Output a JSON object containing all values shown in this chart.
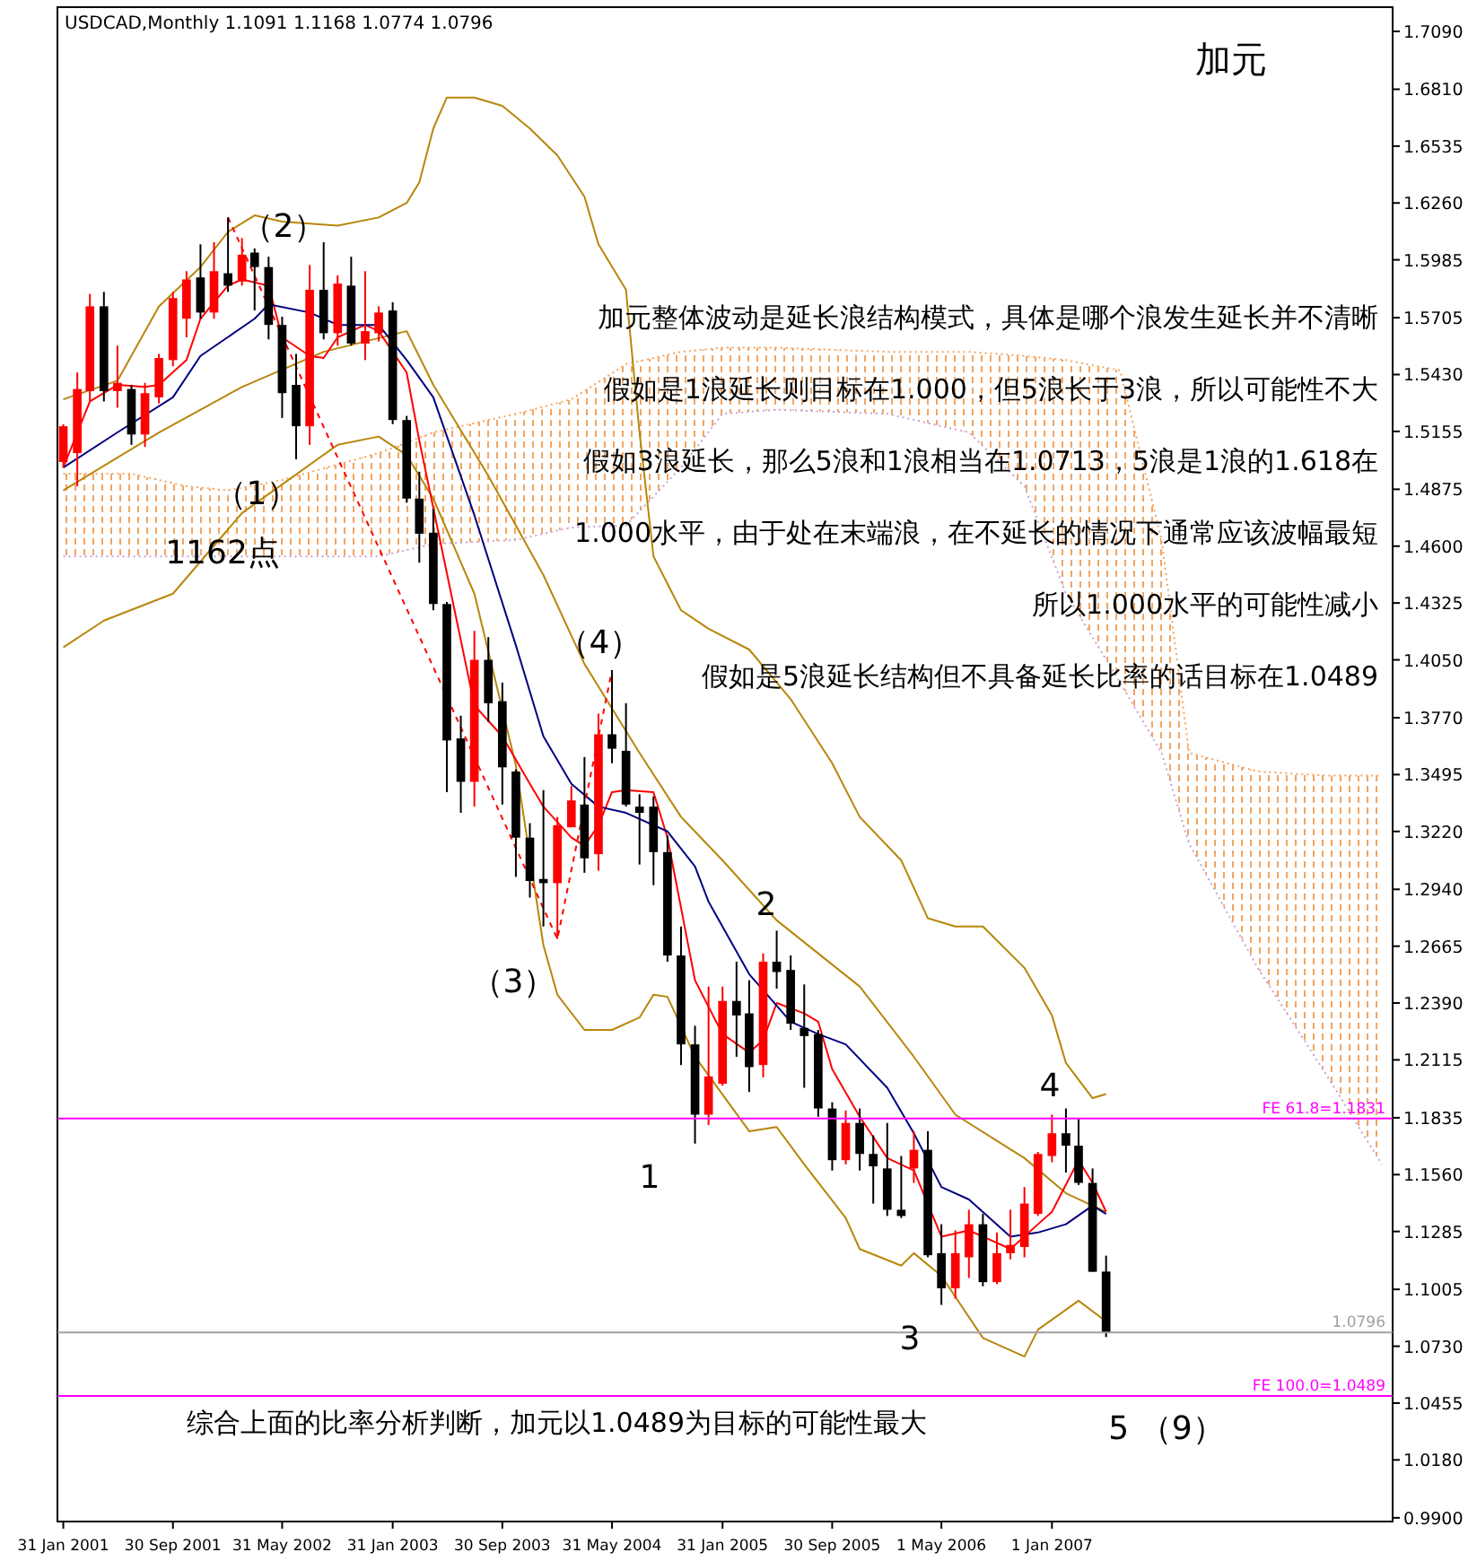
{
  "chart_data": {
    "type": "candlestick",
    "title": "加元",
    "subtitle": "USDCAD,Monthly  1.1091 1.1168 1.0774 1.0796",
    "x": [
      "2001-01",
      "2001-02",
      "2001-03",
      "2001-04",
      "2001-05",
      "2001-06",
      "2001-07",
      "2001-08",
      "2001-09",
      "2001-10",
      "2001-11",
      "2001-12",
      "2002-01",
      "2002-02",
      "2002-03",
      "2002-04",
      "2002-05",
      "2002-06",
      "2002-07",
      "2002-08",
      "2002-09",
      "2002-10",
      "2002-11",
      "2002-12",
      "2003-01",
      "2003-02",
      "2003-03",
      "2003-04",
      "2003-05",
      "2003-06",
      "2003-07",
      "2003-08",
      "2003-09",
      "2003-10",
      "2003-11",
      "2003-12",
      "2004-01",
      "2004-02",
      "2004-03",
      "2004-04",
      "2004-05",
      "2004-06",
      "2004-07",
      "2004-08",
      "2004-09",
      "2004-10",
      "2004-11",
      "2004-12",
      "2005-01",
      "2005-02",
      "2005-03",
      "2005-04",
      "2005-05",
      "2005-06",
      "2005-07",
      "2005-08",
      "2005-09",
      "2005-10",
      "2005-11",
      "2005-12",
      "2006-01",
      "2006-02",
      "2006-03",
      "2006-04",
      "2006-05",
      "2006-06",
      "2006-07",
      "2006-08",
      "2006-09",
      "2006-10",
      "2006-11",
      "2006-12",
      "2007-01",
      "2007-02",
      "2007-03",
      "2007-04",
      "2007-05"
    ],
    "ohlc": [
      [
        1.5007,
        1.519,
        1.498,
        1.518
      ],
      [
        1.505,
        1.544,
        1.489,
        1.536
      ],
      [
        1.535,
        1.582,
        1.53,
        1.576
      ],
      [
        1.576,
        1.583,
        1.53,
        1.535
      ],
      [
        1.535,
        1.557,
        1.527,
        1.539
      ],
      [
        1.536,
        1.538,
        1.509,
        1.514
      ],
      [
        1.514,
        1.539,
        1.508,
        1.534
      ],
      [
        1.532,
        1.553,
        1.529,
        1.551
      ],
      [
        1.55,
        1.583,
        1.547,
        1.58
      ],
      [
        1.57,
        1.593,
        1.561,
        1.589
      ],
      [
        1.59,
        1.606,
        1.57,
        1.573
      ],
      [
        1.573,
        1.607,
        1.57,
        1.593
      ],
      [
        1.592,
        1.619,
        1.583,
        1.586
      ],
      [
        1.588,
        1.609,
        1.586,
        1.601
      ],
      [
        1.602,
        1.604,
        1.574,
        1.595
      ],
      [
        1.595,
        1.6,
        1.56,
        1.567
      ],
      [
        1.567,
        1.571,
        1.522,
        1.534
      ],
      [
        1.538,
        1.553,
        1.502,
        1.518
      ],
      [
        1.518,
        1.596,
        1.509,
        1.584
      ],
      [
        1.584,
        1.607,
        1.56,
        1.563
      ],
      [
        1.563,
        1.591,
        1.557,
        1.587
      ],
      [
        1.586,
        1.6,
        1.557,
        1.558
      ],
      [
        1.558,
        1.593,
        1.55,
        1.564
      ],
      [
        1.563,
        1.576,
        1.559,
        1.573
      ],
      [
        1.574,
        1.578,
        1.519,
        1.521
      ],
      [
        1.521,
        1.523,
        1.481,
        1.483
      ],
      [
        1.483,
        1.496,
        1.452,
        1.466
      ],
      [
        1.4665,
        1.478,
        1.429,
        1.432
      ],
      [
        1.432,
        1.433,
        1.341,
        1.366
      ],
      [
        1.367,
        1.378,
        1.331,
        1.346
      ],
      [
        1.346,
        1.419,
        1.334,
        1.405
      ],
      [
        1.405,
        1.416,
        1.375,
        1.384
      ],
      [
        1.385,
        1.394,
        1.335,
        1.353
      ],
      [
        1.351,
        1.352,
        1.3,
        1.319
      ],
      [
        1.319,
        1.326,
        1.29,
        1.298
      ],
      [
        1.299,
        1.342,
        1.276,
        1.297
      ],
      [
        1.297,
        1.329,
        1.27,
        1.325
      ],
      [
        1.324,
        1.344,
        1.324,
        1.337
      ],
      [
        1.335,
        1.358,
        1.302,
        1.309
      ],
      [
        1.311,
        1.379,
        1.303,
        1.369
      ],
      [
        1.369,
        1.4,
        1.355,
        1.362
      ],
      [
        1.361,
        1.384,
        1.334,
        1.335
      ],
      [
        1.334,
        1.34,
        1.306,
        1.331
      ],
      [
        1.334,
        1.339,
        1.296,
        1.312
      ],
      [
        1.312,
        1.32,
        1.259,
        1.262
      ],
      [
        1.262,
        1.276,
        1.209,
        1.219
      ],
      [
        1.219,
        1.228,
        1.171,
        1.185
      ],
      [
        1.185,
        1.247,
        1.18,
        1.2035
      ],
      [
        1.2,
        1.247,
        1.199,
        1.24
      ],
      [
        1.24,
        1.259,
        1.213,
        1.233
      ],
      [
        1.234,
        1.25,
        1.196,
        1.208
      ],
      [
        1.209,
        1.263,
        1.203,
        1.259
      ],
      [
        1.259,
        1.274,
        1.246,
        1.254
      ],
      [
        1.255,
        1.262,
        1.226,
        1.229
      ],
      [
        1.227,
        1.248,
        1.198,
        1.223
      ],
      [
        1.224,
        1.226,
        1.184,
        1.188
      ],
      [
        1.188,
        1.191,
        1.158,
        1.163
      ],
      [
        1.163,
        1.187,
        1.161,
        1.181
      ],
      [
        1.181,
        1.188,
        1.158,
        1.166
      ],
      [
        1.166,
        1.175,
        1.142,
        1.16
      ],
      [
        1.159,
        1.181,
        1.136,
        1.139
      ],
      [
        1.139,
        1.165,
        1.135,
        1.136
      ],
      [
        1.159,
        1.177,
        1.152,
        1.168
      ],
      [
        1.168,
        1.177,
        1.116,
        1.117
      ],
      [
        1.118,
        1.132,
        1.093,
        1.101
      ],
      [
        1.101,
        1.129,
        1.096,
        1.118
      ],
      [
        1.116,
        1.139,
        1.106,
        1.132
      ],
      [
        1.132,
        1.137,
        1.102,
        1.104
      ],
      [
        1.104,
        1.128,
        1.103,
        1.118
      ],
      [
        1.118,
        1.139,
        1.115,
        1.122
      ],
      [
        1.121,
        1.15,
        1.116,
        1.142
      ],
      [
        1.137,
        1.167,
        1.136,
        1.166
      ],
      [
        1.165,
        1.185,
        1.162,
        1.176
      ],
      [
        1.176,
        1.188,
        1.157,
        1.17
      ],
      [
        1.17,
        1.183,
        1.151,
        1.152
      ],
      [
        1.152,
        1.159,
        1.109,
        1.109
      ],
      [
        1.1091,
        1.1168,
        1.0774,
        1.0796
      ]
    ],
    "colors": [
      "#ff0000",
      "#ff0000",
      "#ff0000",
      "#000000",
      "#ff0000",
      "#000000",
      "#ff0000",
      "#ff0000",
      "#ff0000",
      "#ff0000",
      "#000000",
      "#ff0000",
      "#000000",
      "#ff0000",
      "#000000",
      "#000000",
      "#000000",
      "#000000",
      "#ff0000",
      "#000000",
      "#ff0000",
      "#000000",
      "#ff0000",
      "#ff0000",
      "#000000",
      "#000000",
      "#000000",
      "#000000",
      "#000000",
      "#000000",
      "#ff0000",
      "#000000",
      "#000000",
      "#000000",
      "#000000",
      "#000000",
      "#ff0000",
      "#ff0000",
      "#000000",
      "#ff0000",
      "#000000",
      "#000000",
      "#000000",
      "#000000",
      "#000000",
      "#000000",
      "#000000",
      "#ff0000",
      "#ff0000",
      "#000000",
      "#000000",
      "#ff0000",
      "#000000",
      "#000000",
      "#000000",
      "#000000",
      "#000000",
      "#ff0000",
      "#000000",
      "#000000",
      "#000000",
      "#000000",
      "#ff0000",
      "#000000",
      "#000000",
      "#ff0000",
      "#ff0000",
      "#000000",
      "#ff0000",
      "#ff0000",
      "#ff0000",
      "#ff0000",
      "#ff0000",
      "#000000",
      "#000000",
      "#000000",
      "#000000"
    ],
    "series": [
      {
        "type": "line",
        "line_style": "dotted",
        "color": "#f4a460",
        "x": [
          "2001-01",
          "2001-06",
          "2001-10",
          "2002-01",
          "2002-05",
          "2002-12",
          "2003-04",
          "2003-10",
          "2004-02",
          "2004-06",
          "2004-10",
          "2005-01",
          "2005-05",
          "2006-01",
          "2006-07",
          "2006-11",
          "2007-02",
          "2007-06",
          "2007-09",
          "2007-11",
          "2008-04",
          "2008-09",
          "2009-01"
        ],
        "values": [
          1.495,
          1.495,
          1.489,
          1.487,
          1.492,
          1.505,
          1.515,
          1.524,
          1.531,
          1.548,
          1.554,
          1.556,
          1.556,
          1.554,
          1.554,
          1.552,
          1.55,
          1.545,
          1.463,
          1.36,
          1.351,
          1.349,
          1.349
        ]
      },
      {
        "type": "line",
        "line_style": "dotted",
        "color": "#c8a0d8",
        "x": [
          "2001-01",
          "2001-06",
          "2001-10",
          "2002-01",
          "2002-05",
          "2002-12",
          "2003-04",
          "2003-10",
          "2004-02",
          "2004-06",
          "2004-10",
          "2005-01",
          "2005-05",
          "2006-01",
          "2006-07",
          "2006-11",
          "2007-02",
          "2007-06",
          "2007-09",
          "2007-11",
          "2008-04",
          "2008-09",
          "2009-01"
        ],
        "values": [
          1.455,
          1.455,
          1.455,
          1.455,
          1.455,
          1.455,
          1.461,
          1.463,
          1.469,
          1.47,
          1.498,
          1.524,
          1.526,
          1.524,
          1.515,
          1.489,
          1.437,
          1.394,
          1.36,
          1.316,
          1.256,
          1.204,
          1.161
        ]
      },
      {
        "type": "line",
        "color": "#b8860b",
        "x": [
          "2001-01",
          "2001-05",
          "2001-08",
          "2001-11",
          "2002-01",
          "2002-03",
          "2002-05",
          "2002-09",
          "2002-12",
          "2003-02",
          "2003-03",
          "2003-04",
          "2003-05",
          "2003-07",
          "2003-09",
          "2003-11",
          "2004-01",
          "2004-03",
          "2004-04",
          "2004-06",
          "2004-07",
          "2004-08",
          "2004-10",
          "2004-12",
          "2005-03",
          "2005-06",
          "2005-09",
          "2005-11",
          "2006-02",
          "2006-04",
          "2006-06",
          "2006-08",
          "2006-11",
          "2007-01",
          "2007-02",
          "2007-04",
          "2007-05"
        ],
        "values": [
          1.531,
          1.54,
          1.576,
          1.595,
          1.612,
          1.62,
          1.617,
          1.615,
          1.619,
          1.626,
          1.636,
          1.662,
          1.677,
          1.677,
          1.673,
          1.662,
          1.649,
          1.629,
          1.606,
          1.584,
          1.515,
          1.455,
          1.429,
          1.42,
          1.41,
          1.386,
          1.355,
          1.329,
          1.308,
          1.28,
          1.276,
          1.276,
          1.256,
          1.233,
          1.21,
          1.193,
          1.195
        ]
      },
      {
        "type": "line",
        "color": "#b8860b",
        "x": [
          "2001-01",
          "2001-08",
          "2002-02",
          "2002-08",
          "2003-02",
          "2003-04",
          "2003-08",
          "2003-12",
          "2004-03",
          "2004-07",
          "2004-10",
          "2005-01",
          "2005-05",
          "2005-11",
          "2006-03",
          "2006-06",
          "2006-11",
          "2007-02",
          "2007-05"
        ],
        "values": [
          1.487,
          1.515,
          1.537,
          1.554,
          1.564,
          1.538,
          1.494,
          1.446,
          1.403,
          1.36,
          1.329,
          1.308,
          1.279,
          1.247,
          1.213,
          1.185,
          1.164,
          1.147,
          1.138
        ]
      },
      {
        "type": "line",
        "color": "#b8860b",
        "x": [
          "2001-01",
          "2001-04",
          "2001-09",
          "2002-02",
          "2002-09",
          "2002-12",
          "2003-02",
          "2003-04",
          "2003-07",
          "2003-10",
          "2003-12",
          "2004-01",
          "2004-03",
          "2004-05",
          "2004-07",
          "2004-08",
          "2004-09",
          "2004-11",
          "2005-03",
          "2005-05",
          "2005-07",
          "2005-10",
          "2005-11",
          "2006-02",
          "2006-03",
          "2006-05",
          "2006-08",
          "2006-11",
          "2006-12",
          "2007-03",
          "2007-05"
        ],
        "values": [
          1.411,
          1.424,
          1.437,
          1.476,
          1.509,
          1.513,
          1.504,
          1.483,
          1.437,
          1.354,
          1.267,
          1.243,
          1.226,
          1.226,
          1.232,
          1.243,
          1.242,
          1.213,
          1.177,
          1.179,
          1.161,
          1.135,
          1.12,
          1.112,
          1.118,
          1.107,
          1.077,
          1.068,
          1.081,
          1.095,
          1.085
        ]
      },
      {
        "type": "line",
        "color": "#ff0000",
        "x": [
          "2001-01",
          "2001-03",
          "2001-05",
          "2001-07",
          "2001-08",
          "2001-10",
          "2001-11",
          "2002-01",
          "2002-02",
          "2002-04",
          "2002-05",
          "2002-07",
          "2002-08",
          "2002-09",
          "2002-11",
          "2002-12",
          "2003-02",
          "2003-03",
          "2003-07",
          "2003-09",
          "2003-11",
          "2003-12",
          "2004-02",
          "2004-03",
          "2004-04",
          "2004-05",
          "2004-06",
          "2004-08",
          "2004-09",
          "2004-10",
          "2004-11",
          "2005-01",
          "2005-03",
          "2005-04",
          "2005-05",
          "2005-07",
          "2005-08",
          "2005-09",
          "2005-11",
          "2006-01",
          "2006-03",
          "2006-05",
          "2006-07",
          "2006-08",
          "2006-10",
          "2006-12",
          "2007-01",
          "2007-03",
          "2007-04",
          "2007-05"
        ],
        "values": [
          1.498,
          1.53,
          1.538,
          1.537,
          1.538,
          1.55,
          1.57,
          1.586,
          1.589,
          1.586,
          1.561,
          1.552,
          1.551,
          1.561,
          1.567,
          1.564,
          1.544,
          1.511,
          1.383,
          1.368,
          1.345,
          1.334,
          1.319,
          1.315,
          1.325,
          1.341,
          1.342,
          1.341,
          1.319,
          1.285,
          1.25,
          1.224,
          1.215,
          1.221,
          1.239,
          1.234,
          1.23,
          1.207,
          1.184,
          1.164,
          1.158,
          1.126,
          1.129,
          1.126,
          1.12,
          1.132,
          1.138,
          1.163,
          1.152,
          1.138
        ]
      },
      {
        "type": "line",
        "color": "#000080",
        "x": [
          "2001-01",
          "2001-05",
          "2001-09",
          "2001-11",
          "2002-03",
          "2002-04",
          "2002-07",
          "2002-09",
          "2002-12",
          "2003-02",
          "2003-04",
          "2003-07",
          "2003-10",
          "2003-12",
          "2004-02",
          "2004-04",
          "2004-06",
          "2004-09",
          "2004-11",
          "2004-12",
          "2005-03",
          "2005-06",
          "2005-08",
          "2005-10",
          "2006-01",
          "2006-03",
          "2006-05",
          "2006-07",
          "2006-10",
          "2006-12",
          "2007-02",
          "2007-04",
          "2007-05"
        ],
        "values": [
          1.498,
          1.515,
          1.532,
          1.552,
          1.57,
          1.577,
          1.573,
          1.567,
          1.567,
          1.55,
          1.532,
          1.475,
          1.412,
          1.368,
          1.345,
          1.334,
          1.331,
          1.322,
          1.305,
          1.288,
          1.253,
          1.23,
          1.224,
          1.219,
          1.198,
          1.176,
          1.15,
          1.144,
          1.126,
          1.128,
          1.132,
          1.141,
          1.137
        ]
      },
      {
        "type": "line",
        "color": "#ff0000",
        "line_style": "dashed",
        "x": [
          "2002-01",
          "2004-01",
          "2004-05"
        ],
        "values": [
          1.619,
          1.27,
          1.4
        ]
      }
    ],
    "xlim": [
      "2000-12-19",
      "2009-01-25"
    ],
    "xticks": [
      {
        "value": "2001-01",
        "label": "31 Jan 2001"
      },
      {
        "value": "2001-09",
        "label": "30 Sep 2001"
      },
      {
        "value": "2002-05",
        "label": "31 May 2002"
      },
      {
        "value": "2003-01",
        "label": "31 Jan 2003"
      },
      {
        "value": "2003-09",
        "label": "30 Sep 2003"
      },
      {
        "value": "2004-05",
        "label": "31 May 2004"
      },
      {
        "value": "2005-01",
        "label": "31 Jan 2005"
      },
      {
        "value": "2005-09",
        "label": "30 Sep 2005"
      },
      {
        "value": "2006-05",
        "label": "1 May 2006"
      },
      {
        "value": "2007-01",
        "label": "1 Jan 2007"
      }
    ],
    "ylim": [
      0.9882,
      1.7207
    ],
    "yticks": [
      {
        "value": 1.709,
        "label": "1.7090"
      },
      {
        "value": 1.681,
        "label": "1.6810"
      },
      {
        "value": 1.6535,
        "label": "1.6535"
      },
      {
        "value": 1.626,
        "label": "1.6260"
      },
      {
        "value": 1.5985,
        "label": "1.5985"
      },
      {
        "value": 1.5705,
        "label": "1.5705"
      },
      {
        "value": 1.543,
        "label": "1.5430"
      },
      {
        "value": 1.5155,
        "label": "1.5155"
      },
      {
        "value": 1.4875,
        "label": "1.4875"
      },
      {
        "value": 1.46,
        "label": "1.4600"
      },
      {
        "value": 1.4325,
        "label": "1.4325"
      },
      {
        "value": 1.405,
        "label": "1.4050"
      },
      {
        "value": 1.377,
        "label": "1.3770"
      },
      {
        "value": 1.3495,
        "label": "1.3495"
      },
      {
        "value": 1.322,
        "label": "1.3220"
      },
      {
        "value": 1.294,
        "label": "1.2940"
      },
      {
        "value": 1.2665,
        "label": "1.2665"
      },
      {
        "value": 1.239,
        "label": "1.2390"
      },
      {
        "value": 1.2115,
        "label": "1.2115"
      },
      {
        "value": 1.1835,
        "label": "1.1835"
      },
      {
        "value": 1.156,
        "label": "1.1560"
      },
      {
        "value": 1.1285,
        "label": "1.1285"
      },
      {
        "value": 1.1005,
        "label": "1.1005"
      },
      {
        "value": 1.073,
        "label": "1.0730"
      },
      {
        "value": 1.0455,
        "label": "1.0455"
      },
      {
        "value": 1.018,
        "label": "1.0180"
      },
      {
        "value": 0.99,
        "label": "0.9900"
      }
    ],
    "ref_lines": [
      {
        "axis": "y",
        "value": 1.1831,
        "label": "FE 61.8=1.1831",
        "color": "#ff00ff"
      },
      {
        "axis": "y",
        "value": 1.0489,
        "label": "FE 100.0=1.0489",
        "color": "#ff00ff"
      },
      {
        "axis": "y",
        "value": 1.0796,
        "label": "1.0796",
        "color": "#a0a0a0"
      }
    ],
    "annotations": [
      "加元整体波动是延长浪结构模式，具体是哪个浪发生延长并不清晰",
      "假如是1浪延长则目标在1.000，但5浪长于3浪，所以可能性不大",
      "假如3浪延长，那么5浪和1浪相当在1.0713，5浪是1浪的1.618在",
      "1.000水平，由于处在末端浪，在不延长的情况下通常应该波幅最短",
      "所以1.000水平的可能性减小",
      "假如是5浪延长结构但不具备延长比率的话目标在1.0489",
      "（2）",
      "（1）",
      "1162点",
      "（4）",
      "（3）",
      "2",
      "1",
      "3",
      "4",
      "5 （9）",
      "综合上面的比率分析判断，加元以1.0489为目标的可能性最大"
    ]
  }
}
